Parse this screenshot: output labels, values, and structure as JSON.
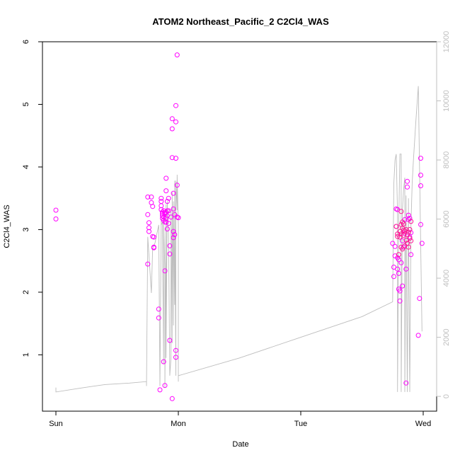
{
  "chart_data": {
    "type": "scatter",
    "title": "ATOM2 Northeast_Pacific_2 C2Cl4_WAS",
    "xlabel": "Date",
    "ylabel": "C2Cl4_WAS",
    "x_ticks": [
      {
        "label": "Sun",
        "value": 0.0
      },
      {
        "label": "Mon",
        "value": 1.0
      },
      {
        "label": "Tue",
        "value": 2.0
      },
      {
        "label": "Wed",
        "value": 3.0
      }
    ],
    "xlim": [
      -0.1,
      3.1
    ],
    "ylim": [
      0.1,
      6.0
    ],
    "y_ticks": [
      1,
      2,
      3,
      4,
      5,
      6
    ],
    "y2_ticks": [
      0,
      2000,
      4000,
      6000,
      8000,
      10000,
      12000
    ],
    "y2lim": [
      -500,
      12000
    ],
    "grid": false,
    "colors": {
      "point_primary": "#ff00ff",
      "point_secondary": "#ff1493",
      "altitude_line": "#bdbdbd",
      "right_axis": "#bfbfbf"
    },
    "series": [
      {
        "type": "scatter",
        "color": "#ff00ff",
        "points": [
          [
            0.0,
            3.31
          ],
          [
            0.0,
            3.17
          ],
          [
            0.75,
            3.52
          ],
          [
            0.75,
            3.24
          ],
          [
            0.76,
            3.11
          ],
          [
            0.76,
            3.03
          ],
          [
            0.76,
            2.97
          ],
          [
            0.75,
            2.45
          ],
          [
            0.78,
            3.52
          ],
          [
            0.78,
            3.43
          ],
          [
            0.79,
            3.37
          ],
          [
            0.79,
            2.89
          ],
          [
            0.8,
            2.88
          ],
          [
            0.8,
            2.72
          ],
          [
            0.8,
            2.71
          ],
          [
            0.84,
            1.73
          ],
          [
            0.84,
            1.59
          ],
          [
            0.85,
            0.44
          ],
          [
            0.86,
            3.5
          ],
          [
            0.86,
            3.45
          ],
          [
            0.86,
            3.38
          ],
          [
            0.86,
            3.32
          ],
          [
            0.87,
            3.28
          ],
          [
            0.87,
            3.25
          ],
          [
            0.87,
            3.22
          ],
          [
            0.87,
            3.18
          ],
          [
            0.88,
            3.15
          ],
          [
            0.88,
            3.3
          ],
          [
            0.88,
            3.2
          ],
          [
            0.89,
            3.25
          ],
          [
            0.89,
            3.12
          ],
          [
            0.89,
            3.27
          ],
          [
            0.9,
            3.28
          ],
          [
            0.9,
            3.18
          ],
          [
            0.9,
            3.12
          ],
          [
            0.91,
            3.3
          ],
          [
            0.91,
            3.22
          ],
          [
            0.91,
            3.45
          ],
          [
            0.92,
            3.1
          ],
          [
            0.88,
            0.89
          ],
          [
            0.89,
            0.51
          ],
          [
            0.89,
            2.34
          ],
          [
            0.9,
            3.82
          ],
          [
            0.9,
            3.62
          ],
          [
            0.91,
            3.01
          ],
          [
            0.92,
            3.5
          ],
          [
            0.92,
            3.3
          ],
          [
            0.93,
            2.74
          ],
          [
            0.93,
            2.61
          ],
          [
            0.93,
            1.23
          ],
          [
            0.94,
            3.2
          ],
          [
            0.95,
            0.3
          ],
          [
            0.95,
            4.77
          ],
          [
            0.95,
            4.61
          ],
          [
            0.95,
            4.15
          ],
          [
            0.96,
            3.58
          ],
          [
            0.96,
            3.33
          ],
          [
            0.96,
            2.97
          ],
          [
            0.96,
            2.87
          ],
          [
            0.97,
            2.92
          ],
          [
            0.97,
            3.24
          ],
          [
            0.98,
            0.96
          ],
          [
            0.98,
            1.07
          ],
          [
            0.98,
            4.14
          ],
          [
            0.98,
            4.98
          ],
          [
            0.98,
            4.72
          ],
          [
            0.99,
            5.79
          ],
          [
            0.99,
            3.71
          ],
          [
            0.99,
            3.2
          ],
          [
            1.0,
            3.19
          ],
          [
            2.75,
            2.78
          ],
          [
            2.76,
            2.4
          ],
          [
            2.76,
            2.25
          ],
          [
            2.77,
            2.58
          ],
          [
            2.77,
            2.73
          ],
          [
            2.78,
            3.33
          ],
          [
            2.78,
            3.05
          ],
          [
            2.79,
            3.32
          ],
          [
            2.79,
            2.55
          ],
          [
            2.79,
            2.37
          ],
          [
            2.8,
            2.52
          ],
          [
            2.8,
            2.3
          ],
          [
            2.8,
            2.05
          ],
          [
            2.81,
            2.02
          ],
          [
            2.81,
            1.86
          ],
          [
            2.82,
            2.47
          ],
          [
            2.83,
            2.1
          ],
          [
            2.83,
            2.82
          ],
          [
            2.84,
            2.72
          ],
          [
            2.85,
            3.16
          ],
          [
            2.85,
            2.94
          ],
          [
            2.86,
            2.37
          ],
          [
            2.86,
            0.55
          ],
          [
            2.87,
            3.77
          ],
          [
            2.87,
            3.68
          ],
          [
            2.88,
            3.23
          ],
          [
            2.88,
            3.16
          ],
          [
            2.89,
            2.88
          ],
          [
            2.89,
            3.18
          ],
          [
            2.9,
            2.6
          ],
          [
            2.9,
            2.95
          ],
          [
            2.96,
            1.31
          ],
          [
            2.97,
            1.9
          ],
          [
            2.98,
            4.14
          ],
          [
            2.98,
            3.87
          ],
          [
            2.98,
            3.7
          ],
          [
            2.98,
            3.08
          ],
          [
            2.99,
            2.78
          ]
        ]
      },
      {
        "type": "scatter",
        "color": "#ff1493",
        "points": [
          [
            2.78,
            3.05
          ],
          [
            2.79,
            2.93
          ],
          [
            2.79,
            2.89
          ],
          [
            2.8,
            2.6
          ],
          [
            2.81,
            2.88
          ],
          [
            2.81,
            2.97
          ],
          [
            2.82,
            3.08
          ],
          [
            2.82,
            2.93
          ],
          [
            2.82,
            2.72
          ],
          [
            2.83,
            3.02
          ],
          [
            2.83,
            2.69
          ],
          [
            2.84,
            2.91
          ],
          [
            2.84,
            3.09
          ],
          [
            2.85,
            2.74
          ],
          [
            2.85,
            2.98
          ],
          [
            2.86,
            3.0
          ],
          [
            2.86,
            2.83
          ],
          [
            2.87,
            2.92
          ],
          [
            2.87,
            2.78
          ],
          [
            2.88,
            2.96
          ],
          [
            2.88,
            2.72
          ],
          [
            2.89,
            3.0
          ],
          [
            2.89,
            2.86
          ],
          [
            2.9,
            3.13
          ],
          [
            2.9,
            2.82
          ],
          [
            2.84,
            2.99
          ],
          [
            2.83,
            3.12
          ],
          [
            2.82,
            3.29
          ]
        ]
      },
      {
        "type": "line",
        "axis": "right",
        "color": "#bdbdbd",
        "points": [
          [
            0.0,
            300
          ],
          [
            0.0,
            150
          ],
          [
            0.2,
            280
          ],
          [
            0.4,
            400
          ],
          [
            0.6,
            450
          ],
          [
            0.74,
            500
          ],
          [
            0.74,
            350
          ],
          [
            0.75,
            5400
          ],
          [
            0.78,
            3500
          ],
          [
            0.79,
            5000
          ],
          [
            0.8,
            5100
          ],
          [
            0.81,
            5200
          ],
          [
            0.84,
            5800
          ],
          [
            0.85,
            350
          ],
          [
            0.86,
            6000
          ],
          [
            0.86,
            5800
          ],
          [
            0.87,
            5900
          ],
          [
            0.87,
            5700
          ],
          [
            0.88,
            1100
          ],
          [
            0.88,
            6100
          ],
          [
            0.89,
            4200
          ],
          [
            0.89,
            300
          ],
          [
            0.9,
            6500
          ],
          [
            0.9,
            1300
          ],
          [
            0.91,
            6600
          ],
          [
            0.92,
            5500
          ],
          [
            0.93,
            700
          ],
          [
            0.94,
            1300
          ],
          [
            0.94,
            6300
          ],
          [
            0.95,
            1800
          ],
          [
            0.95,
            6900
          ],
          [
            0.96,
            2400
          ],
          [
            0.96,
            6600
          ],
          [
            0.97,
            3100
          ],
          [
            0.97,
            7300
          ],
          [
            0.98,
            700
          ],
          [
            0.98,
            7300
          ],
          [
            0.99,
            6300
          ],
          [
            0.99,
            7500
          ],
          [
            1.0,
            5800
          ],
          [
            1.0,
            500
          ],
          [
            1.0,
            700
          ],
          [
            1.5,
            1300
          ],
          [
            2.0,
            2000
          ],
          [
            2.5,
            2700
          ],
          [
            2.75,
            3200
          ],
          [
            2.76,
            7200
          ],
          [
            2.77,
            8000
          ],
          [
            2.78,
            8200
          ],
          [
            2.79,
            6200
          ],
          [
            2.79,
            150
          ],
          [
            2.8,
            5800
          ],
          [
            2.81,
            8200
          ],
          [
            2.82,
            8200
          ],
          [
            2.82,
            150
          ],
          [
            2.83,
            6300
          ],
          [
            2.84,
            7000
          ],
          [
            2.85,
            7400
          ],
          [
            2.85,
            6800
          ],
          [
            2.85,
            150
          ],
          [
            2.86,
            6800
          ],
          [
            2.86,
            6400
          ],
          [
            2.87,
            150
          ],
          [
            2.88,
            6700
          ],
          [
            2.88,
            6200
          ],
          [
            2.89,
            150
          ],
          [
            2.9,
            5800
          ],
          [
            2.91,
            7200
          ],
          [
            2.92,
            8000
          ],
          [
            2.94,
            9300
          ],
          [
            2.96,
            10500
          ],
          [
            2.99,
            2200
          ]
        ]
      }
    ]
  }
}
